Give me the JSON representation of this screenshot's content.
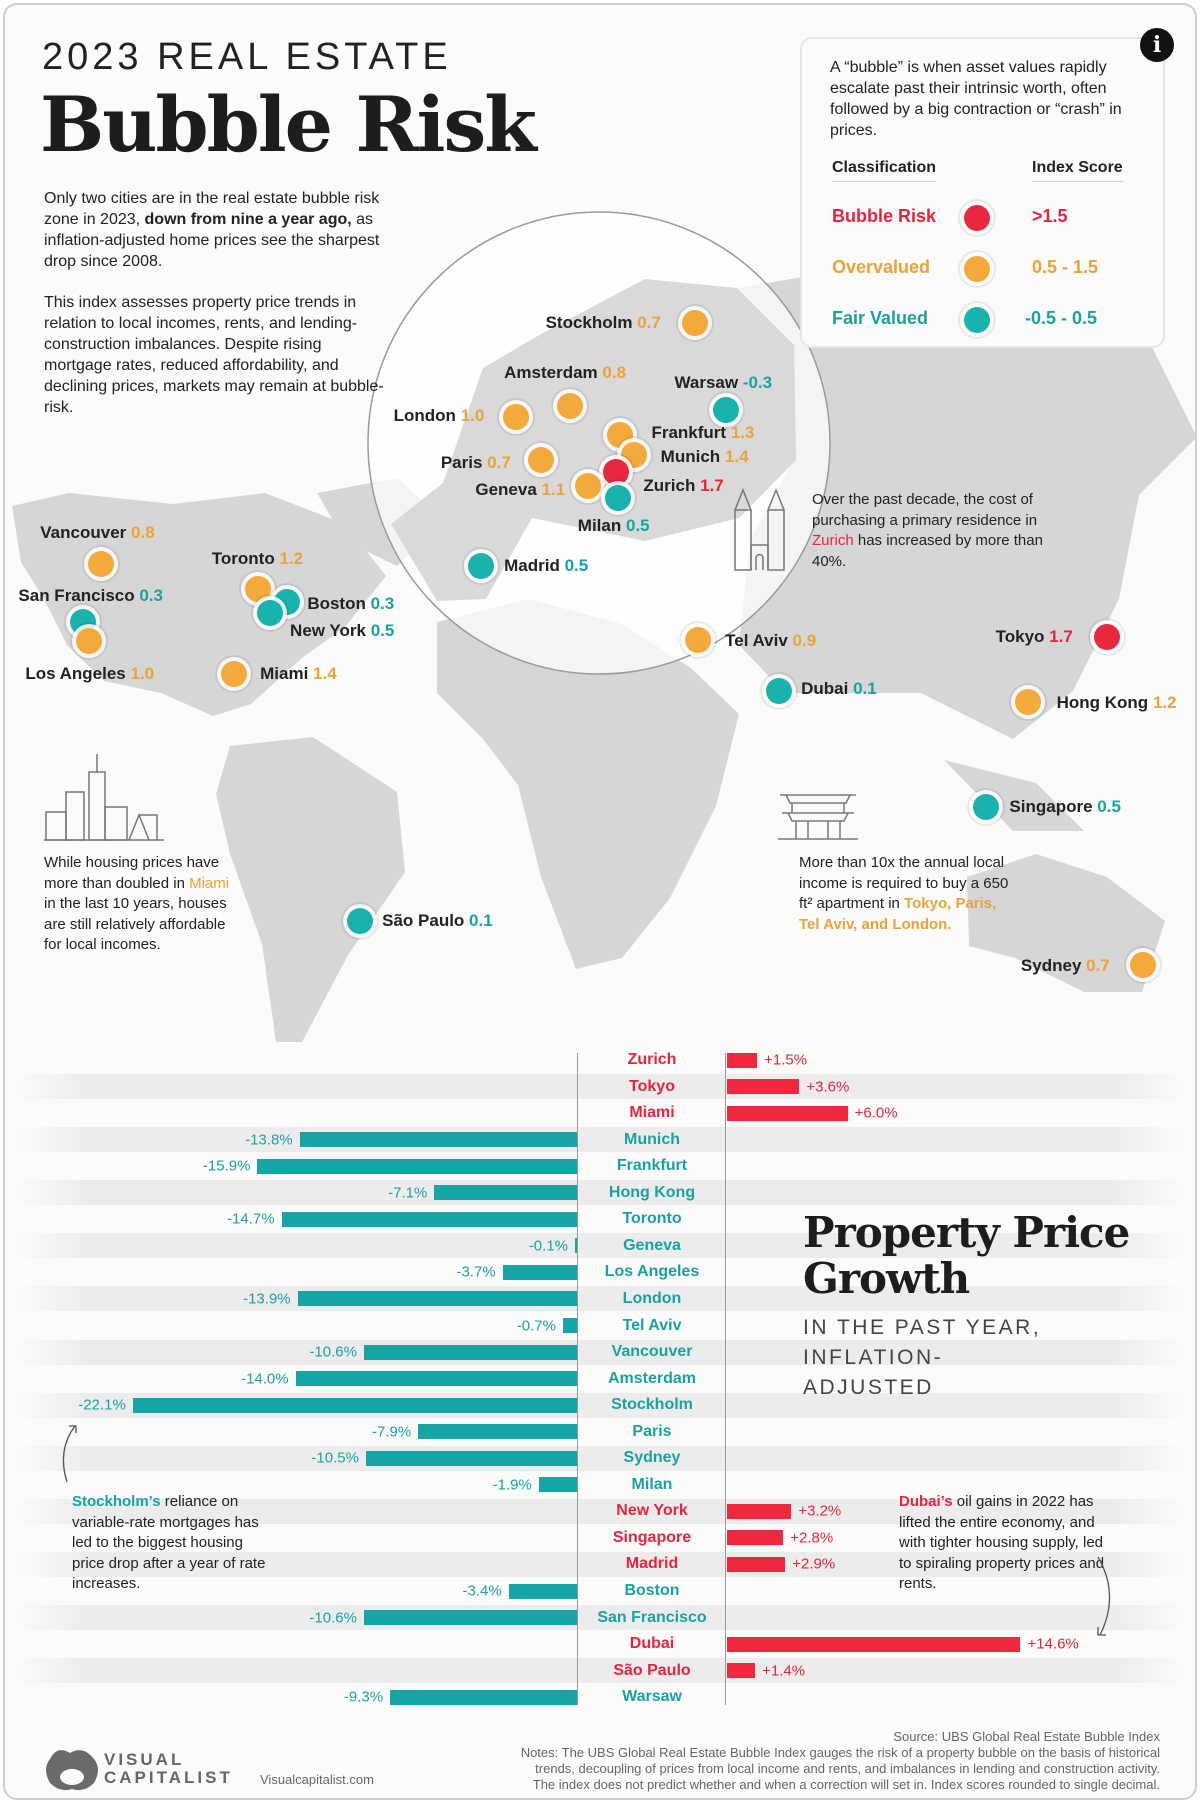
{
  "header": {
    "supertitle": "2023 REAL ESTATE",
    "title": "Bubble Risk"
  },
  "intro": {
    "p1_a": "Only two cities are in the real estate bubble risk zone in 2023, ",
    "p1_b": "down from nine a year ago,",
    "p1_c": " as inflation-adjusted home prices see the sharpest drop since 2008.",
    "p2": "This index assesses property price trends in relation to local incomes, rents, and lending-construction imbalances. Despite rising mortgage rates, reduced affordability, and declining prices, markets may remain at bubble-risk."
  },
  "legend": {
    "info_icon": "i",
    "definition": "A “bubble” is when asset values rapidly escalate past their intrinsic worth, often followed by a big contraction or “crash” in prices.",
    "col_class": "Classification",
    "col_score": "Index Score",
    "rows": [
      {
        "label": "Bubble Risk",
        "range": ">1.5",
        "color": "#e8283f"
      },
      {
        "label": "Overvalued",
        "range": "0.5 - 1.5",
        "color": "#f4a93b"
      },
      {
        "label": "Fair Valued",
        "range": "-0.5 - 0.5",
        "color": "#18b3ac"
      }
    ]
  },
  "colors": {
    "bubble": "#e8283f",
    "over": "#f4a93b",
    "fair": "#18b3ac",
    "map": "#d6d6d6"
  },
  "cities": [
    {
      "name": "Stockholm",
      "score": "0.7",
      "cls": "over"
    },
    {
      "name": "Amsterdam",
      "score": "0.8",
      "cls": "over"
    },
    {
      "name": "Warsaw",
      "score": "-0.3",
      "cls": "fair"
    },
    {
      "name": "London",
      "score": "1.0",
      "cls": "over"
    },
    {
      "name": "Frankfurt",
      "score": "1.3",
      "cls": "over"
    },
    {
      "name": "Munich",
      "score": "1.4",
      "cls": "over"
    },
    {
      "name": "Paris",
      "score": "0.7",
      "cls": "over"
    },
    {
      "name": "Zurich",
      "score": "1.7",
      "cls": "bubble"
    },
    {
      "name": "Geneva",
      "score": "1.1",
      "cls": "over"
    },
    {
      "name": "Milan",
      "score": "0.5",
      "cls": "fair"
    },
    {
      "name": "Madrid",
      "score": "0.5",
      "cls": "fair"
    },
    {
      "name": "Vancouver",
      "score": "0.8",
      "cls": "over"
    },
    {
      "name": "Toronto",
      "score": "1.2",
      "cls": "over"
    },
    {
      "name": "Boston",
      "score": "0.3",
      "cls": "fair"
    },
    {
      "name": "New York",
      "score": "0.5",
      "cls": "fair"
    },
    {
      "name": "San Francisco",
      "score": "0.3",
      "cls": "fair"
    },
    {
      "name": "Los Angeles",
      "score": "1.0",
      "cls": "over"
    },
    {
      "name": "Miami",
      "score": "1.4",
      "cls": "over"
    },
    {
      "name": "Tel Aviv",
      "score": "0.9",
      "cls": "over"
    },
    {
      "name": "Dubai",
      "score": "0.1",
      "cls": "fair"
    },
    {
      "name": "Tokyo",
      "score": "1.7",
      "cls": "bubble"
    },
    {
      "name": "Hong Kong",
      "score": "1.2",
      "cls": "over"
    },
    {
      "name": "Singapore",
      "score": "0.5",
      "cls": "fair"
    },
    {
      "name": "São Paulo",
      "score": "0.1",
      "cls": "fair"
    },
    {
      "name": "Sydney",
      "score": "0.7",
      "cls": "over"
    }
  ],
  "notes": {
    "zurich": {
      "a": "Over the past decade, the cost of purchasing a primary residence in ",
      "hl": "Zurich",
      "b": " has increased by more than 40%."
    },
    "miami": {
      "a": "While housing prices have more than doubled in ",
      "hl": "Miami",
      "b": " in the last 10 years, houses are still relatively affordable for local incomes."
    },
    "tokyo": {
      "a": "More than 10x the annual local income is required to buy a 650 ft² apartment in ",
      "hl": "Tokyo, Paris, Tel Aviv, and London."
    },
    "stockholm": {
      "hl": "Stockholm’s",
      "b": " reliance on variable-rate mortgages has led to the biggest housing price drop after a year of rate increases."
    },
    "dubai": {
      "hl": "Dubai’s",
      "b": " oil gains in 2022 has lifted the entire economy, and with tighter housing supply, led to spiraling property prices and rents."
    }
  },
  "chart_data": {
    "type": "bar",
    "title": "Property Price Growth",
    "subtitle": "IN THE PAST YEAR, INFLATION-ADJUSTED",
    "orientation": "horizontal",
    "unit": "%",
    "categories": [
      "Zurich",
      "Tokyo",
      "Miami",
      "Munich",
      "Frankfurt",
      "Hong Kong",
      "Toronto",
      "Geneva",
      "Los Angeles",
      "London",
      "Tel Aviv",
      "Vancouver",
      "Amsterdam",
      "Stockholm",
      "Paris",
      "Sydney",
      "Milan",
      "New York",
      "Singapore",
      "Madrid",
      "Boston",
      "San Francisco",
      "Dubai",
      "São Paulo",
      "Warsaw"
    ],
    "values": [
      1.5,
      3.6,
      6.0,
      -13.8,
      -15.9,
      -7.1,
      -14.7,
      -0.1,
      -3.7,
      -13.9,
      -0.7,
      -10.6,
      -14.0,
      -22.1,
      -7.9,
      -10.5,
      -1.9,
      3.2,
      2.8,
      2.9,
      -3.4,
      -10.6,
      14.6,
      1.4,
      -9.3
    ],
    "labels": [
      "+1.5%",
      "+3.6%",
      "+6.0%",
      "-13.8%",
      "-15.9%",
      "-7.1%",
      "-14.7%",
      "-0.1%",
      "-3.7%",
      "-13.9%",
      "-0.7%",
      "-10.6%",
      "-14.0%",
      "-22.1%",
      "-7.9%",
      "-10.5%",
      "-1.9%",
      "+3.2%",
      "+2.8%",
      "+2.9%",
      "-3.4%",
      "-10.6%",
      "+14.6%",
      "+1.4%",
      "-9.3%"
    ],
    "colors": {
      "positive": "#f0283f",
      "negative": "#15a5a5"
    }
  },
  "footer": {
    "brand_1": "VISUAL",
    "brand_2": "CAPITALIST",
    "site": "Visualcapitalist.com",
    "source": "Source: UBS Global Real Estate Bubble Index",
    "notes": "Notes: The UBS Global Real Estate Bubble Index gauges the risk of a property bubble on the basis of historical trends, decoupling of prices from local income and rents, and imbalances in lending and construction activity. The index does not predict whether and when a correction will set in. Index scores rounded to single decimal."
  }
}
